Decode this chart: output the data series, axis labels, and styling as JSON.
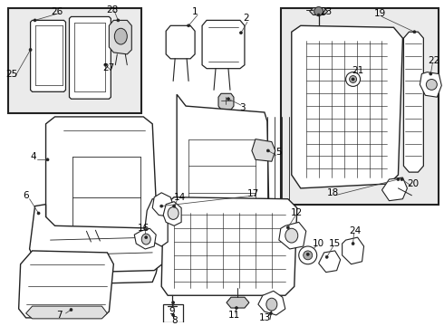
{
  "bg_color": "#ffffff",
  "box_bg": "#e8e8e8",
  "line_color": "#222222",
  "label_color": "#000000",
  "fig_width": 4.9,
  "fig_height": 3.6,
  "dpi": 100
}
